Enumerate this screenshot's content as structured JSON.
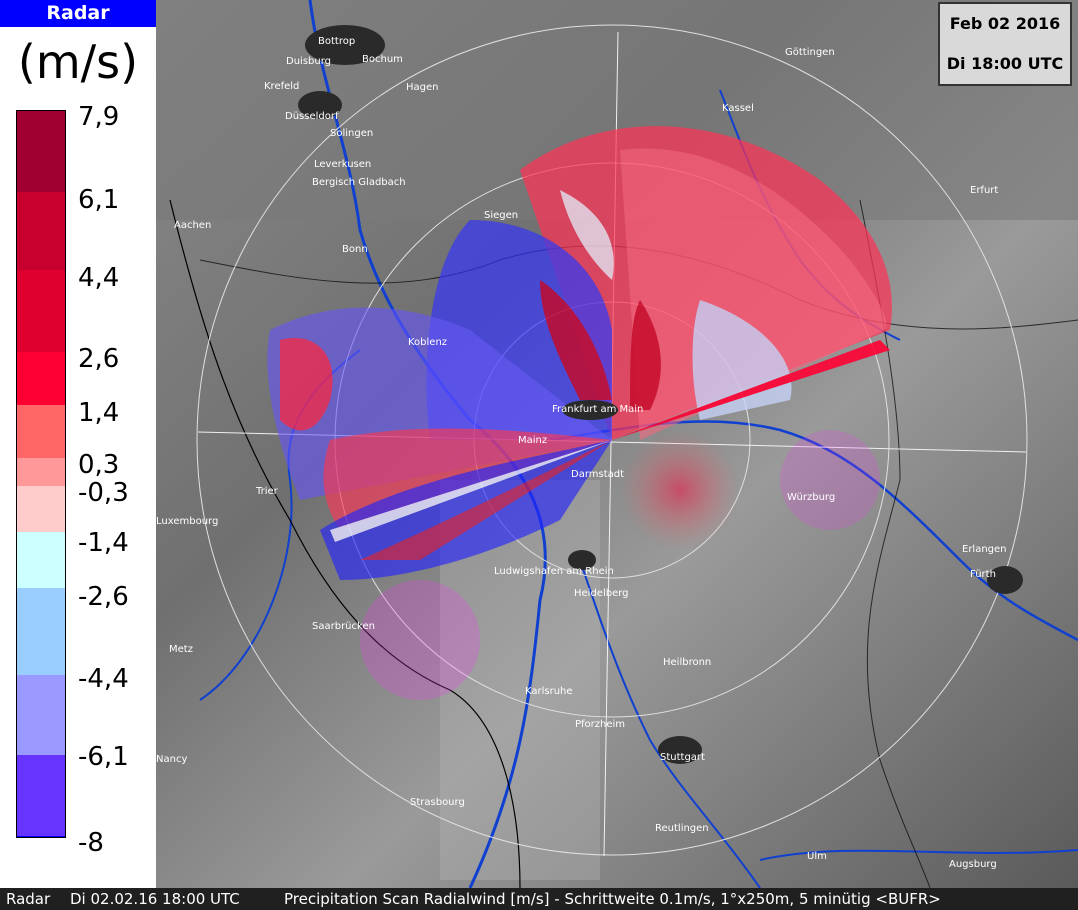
{
  "legend": {
    "title": "Radar",
    "unit": "(m/s)",
    "ticks": [
      "7,9",
      "6,1",
      "4,4",
      "2,6",
      "1,4",
      "0,3",
      "-0,3",
      "-1,4",
      "-2,6",
      "-4,4",
      "-6,1",
      "-8"
    ],
    "colors": [
      "#a00030",
      "#c8002d",
      "#e00030",
      "#ff0033",
      "#ff6666",
      "#ff9999",
      "#ffcccc",
      "#ccffff",
      "#99ccff",
      "#9999ff",
      "#6633ff",
      "#0000ff",
      "#0000cc"
    ]
  },
  "header": {
    "date": "Feb 02 2016",
    "time": "Di 18:00 UTC"
  },
  "footer": {
    "radar": "Radar",
    "timestamp": "Di 02.02.16 18:00 UTC",
    "description": "Precipitation Scan Radialwind [m/s] - Schrittweite 0.1m/s, 1°x250m, 5 minütig <BUFR>"
  },
  "cities": [
    {
      "name": "Bottrop"
    },
    {
      "name": "Duisburg"
    },
    {
      "name": "Bochum"
    },
    {
      "name": "Krefeld"
    },
    {
      "name": "Hagen"
    },
    {
      "name": "Düsseldorf"
    },
    {
      "name": "Solingen"
    },
    {
      "name": "Leverkusen"
    },
    {
      "name": "Bergisch Gladbach"
    },
    {
      "name": "Aachen"
    },
    {
      "name": "Bonn"
    },
    {
      "name": "Siegen"
    },
    {
      "name": "Koblenz"
    },
    {
      "name": "Kassel"
    },
    {
      "name": "Göttingen"
    },
    {
      "name": "Erfurt"
    },
    {
      "name": "Frankfurt am Main"
    },
    {
      "name": "Mainz"
    },
    {
      "name": "Darmstadt"
    },
    {
      "name": "Würzburg"
    },
    {
      "name": "Trier"
    },
    {
      "name": "Luxembourg"
    },
    {
      "name": "Ludwigshafen am Rhein"
    },
    {
      "name": "Heidelberg"
    },
    {
      "name": "Erlangen"
    },
    {
      "name": "Fürth"
    },
    {
      "name": "Saarbrücken"
    },
    {
      "name": "Metz"
    },
    {
      "name": "Heilbronn"
    },
    {
      "name": "Karlsruhe"
    },
    {
      "name": "Pforzheim"
    },
    {
      "name": "Nancy"
    },
    {
      "name": "Stuttgart"
    },
    {
      "name": "Strasbourg"
    },
    {
      "name": "Reutlingen"
    },
    {
      "name": "Ulm"
    },
    {
      "name": "Augsburg"
    }
  ]
}
